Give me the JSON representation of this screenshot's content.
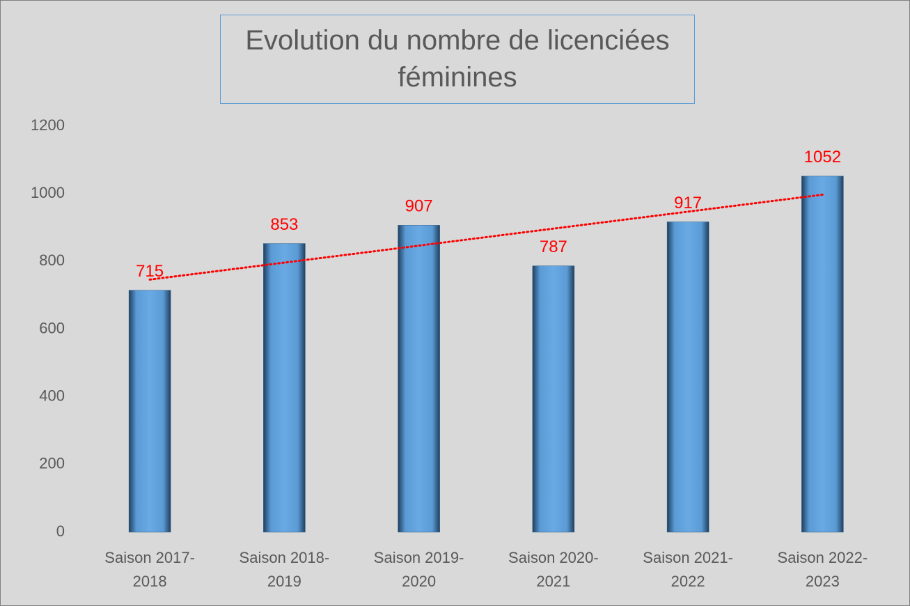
{
  "chart_data": {
    "type": "bar",
    "title": "Evolution du nombre de licenciées féminines",
    "categories": [
      "Saison 2017-2018",
      "Saison 2018-2019",
      "Saison 2019-2020",
      "Saison 2020-2021",
      "Saison 2021-2022",
      "Saison 2022-2023"
    ],
    "values": [
      715,
      853,
      907,
      787,
      917,
      1052
    ],
    "color": "#5b9bd5",
    "label_color": "#ff0000",
    "ylim": [
      0,
      1200
    ],
    "yticks": [
      0,
      200,
      400,
      600,
      800,
      1000,
      1200
    ],
    "grid": false,
    "trendline": "linear",
    "trendline_color": "#ff0000"
  }
}
